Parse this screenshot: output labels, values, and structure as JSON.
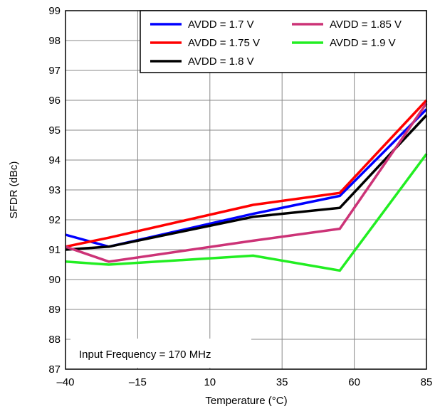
{
  "chart_data": {
    "type": "line",
    "title": "",
    "xlabel": "Temperature (°C)",
    "ylabel": "SFDR (dBc)",
    "xlim": [
      -40,
      85
    ],
    "ylim": [
      87,
      99
    ],
    "xticks": [
      -40,
      -15,
      10,
      35,
      60,
      85
    ],
    "xtick_labels": [
      "–40",
      "–15",
      "10",
      "35",
      "60",
      "85"
    ],
    "yticks": [
      87,
      88,
      89,
      90,
      91,
      92,
      93,
      94,
      95,
      96,
      97,
      98,
      99
    ],
    "ytick_labels": [
      "87",
      "88",
      "89",
      "90",
      "91",
      "92",
      "93",
      "94",
      "95",
      "96",
      "97",
      "98",
      "99"
    ],
    "grid": true,
    "legend_position": "top-right",
    "annotation": "Input Frequency = 170 MHz",
    "x": [
      -40,
      -25,
      25,
      55,
      85
    ],
    "series": [
      {
        "name": "AVDD = 1.7 V",
        "color": "#0000ff",
        "values": [
          91.5,
          91.1,
          92.2,
          92.8,
          95.7
        ]
      },
      {
        "name": "AVDD = 1.75 V",
        "color": "#ff0000",
        "values": [
          91.1,
          91.4,
          92.5,
          92.9,
          96.0
        ]
      },
      {
        "name": "AVDD = 1.8  V",
        "color": "#000000",
        "values": [
          91.0,
          91.1,
          92.1,
          92.4,
          95.5
        ]
      },
      {
        "name": "AVDD = 1.85  V",
        "color": "#cc3377",
        "values": [
          91.1,
          90.6,
          91.3,
          91.7,
          95.9
        ]
      },
      {
        "name": "AVDD = 1.9  V",
        "color": "#22ee22",
        "values": [
          90.6,
          90.5,
          90.8,
          90.3,
          94.2
        ]
      }
    ]
  }
}
